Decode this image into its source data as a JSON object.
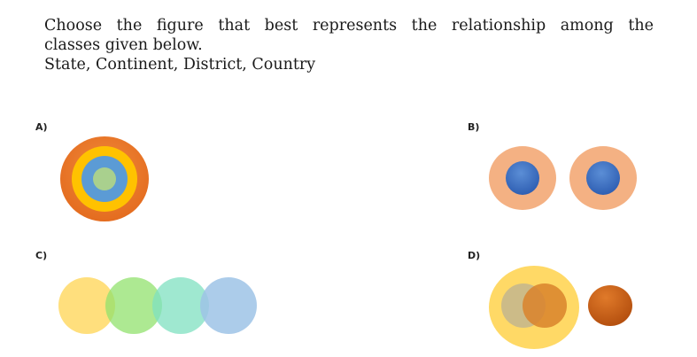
{
  "question": {
    "line1": "Choose the figure that best represents the relationship among the",
    "line2": "classes given below.",
    "line3": "State, Continent, District, Country"
  },
  "options": {
    "a": {
      "label": "A)",
      "figure": "four-concentric-circles"
    },
    "b": {
      "label": "B)",
      "figure": "two-separate-pairs-of-nested-circles"
    },
    "c": {
      "label": "C)",
      "figure": "four-chain-overlapping-circles"
    },
    "d": {
      "label": "D)",
      "figure": "two-overlapping-circles-inside-one-plus-separate-circle"
    }
  },
  "colors": {
    "a_outer": "#e8782e",
    "a_ring2": "#ffc200",
    "a_ring3": "#5b9bd5",
    "a_inner": "#a9d08e",
    "b_outer": "#f4b183",
    "b_inner": "#4472c4",
    "c_1": "#ffd966",
    "c_2": "#92e26e",
    "c_3": "#7fe0c0",
    "c_4": "#9dc3e6",
    "d_big": "#ffd966",
    "d_left": "#c9b98a",
    "d_right": "#d9822b",
    "d_separate": "#c55a11"
  }
}
